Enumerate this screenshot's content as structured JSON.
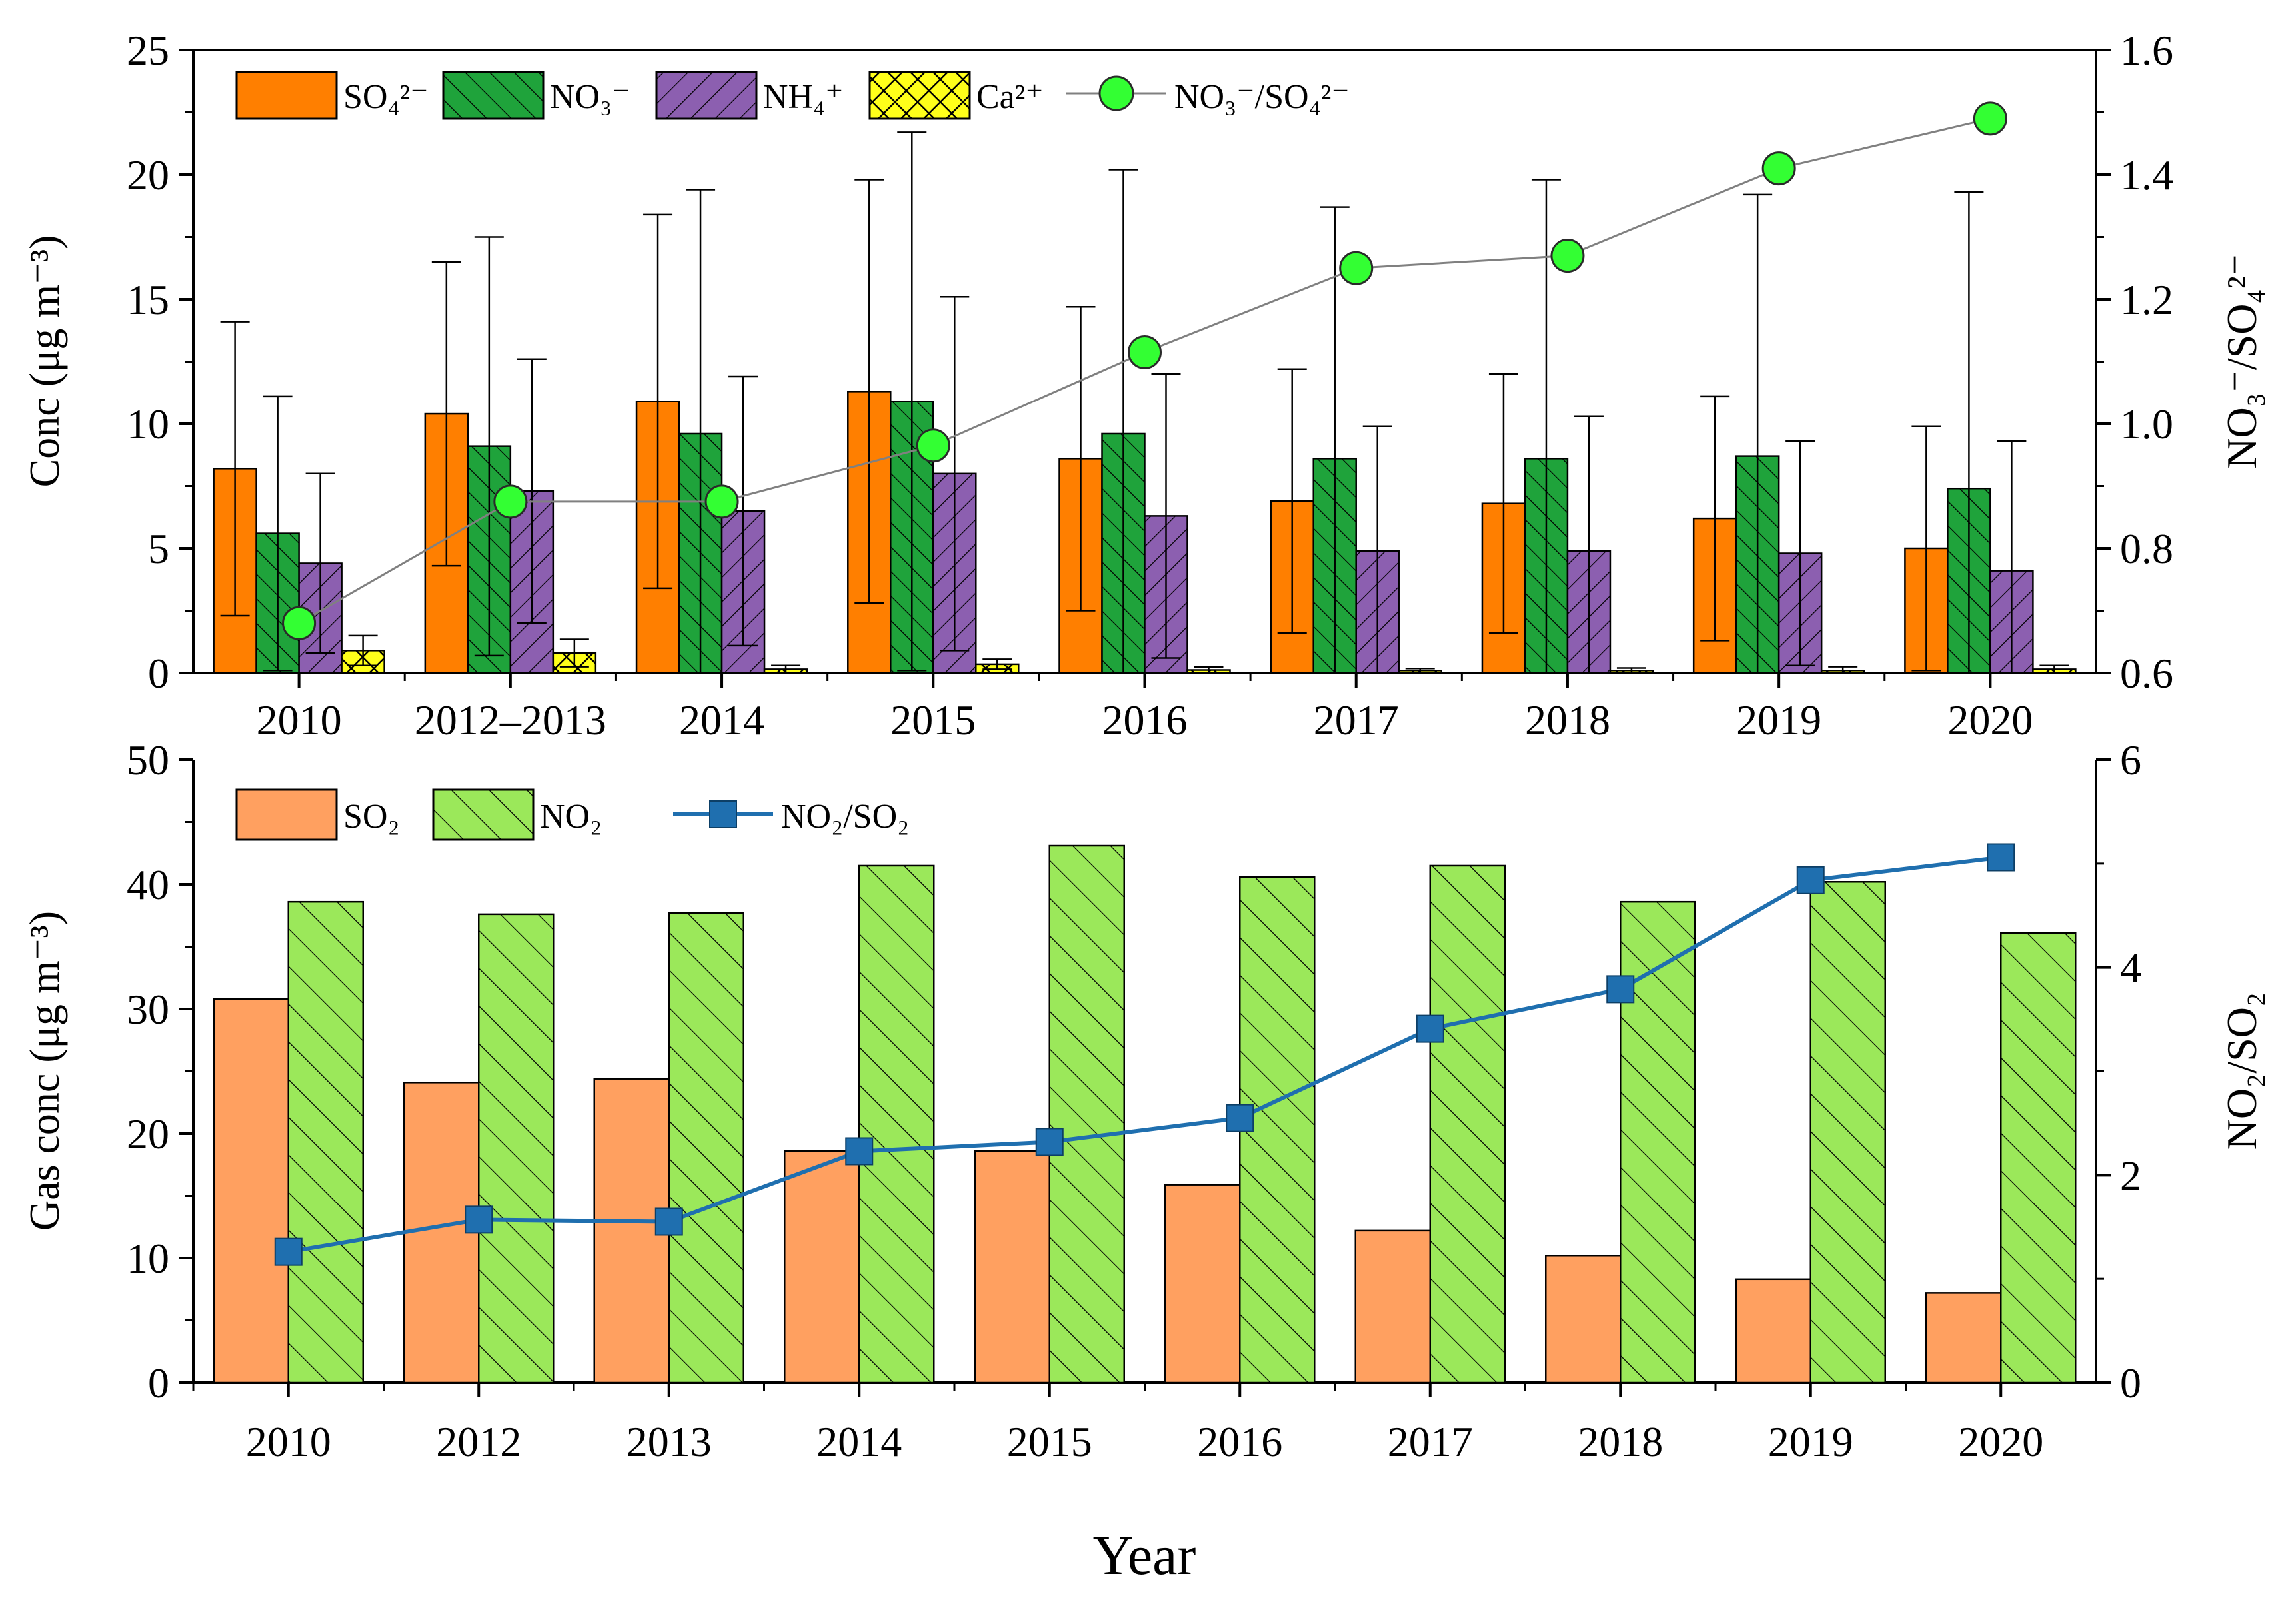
{
  "colors": {
    "so4": "#FF7F00",
    "no3": "#1FA33B",
    "nh4": "#8C5FB0",
    "ca": "#FFFF1A",
    "ratio_marker": "#33FF33",
    "ratio_line": "#808080",
    "so2": "#FFA060",
    "no2": "#9BE85A",
    "gas_ratio": "#1F6FAF"
  },
  "chart_data": [
    {
      "type": "bar",
      "id": "top",
      "ylabel": "Conc (μg m⁻³)",
      "y2label": "NO₃⁻/SO₄²⁻",
      "ylim": [
        0,
        25
      ],
      "y2lim": [
        0.6,
        1.6
      ],
      "yticks": [
        0,
        5,
        10,
        15,
        20,
        25
      ],
      "y2ticks": [
        "0.6",
        "0.8",
        "1.0",
        "1.2",
        "1.4",
        "1.6"
      ],
      "categories": [
        "2010",
        "2012–2013",
        "2014",
        "2015",
        "2016",
        "2017",
        "2018",
        "2019",
        "2020"
      ],
      "legend": [
        "SO₄²⁻",
        "NO₃⁻",
        "NH₄⁺",
        "Ca²⁺",
        "NO₃⁻/SO₄²⁻"
      ],
      "series": [
        {
          "name": "SO4",
          "values": [
            8.2,
            10.4,
            10.9,
            11.3,
            8.6,
            6.9,
            6.8,
            6.2,
            5.0
          ],
          "error": [
            5.9,
            6.1,
            7.5,
            8.5,
            6.1,
            5.3,
            5.2,
            4.9,
            4.9
          ]
        },
        {
          "name": "NO3",
          "values": [
            5.6,
            9.1,
            9.6,
            10.9,
            9.6,
            8.6,
            8.6,
            8.7,
            7.4
          ],
          "error": [
            5.5,
            8.4,
            9.8,
            10.8,
            10.6,
            10.1,
            11.2,
            10.5,
            11.9
          ]
        },
        {
          "name": "NH4",
          "values": [
            4.4,
            7.3,
            6.5,
            8.0,
            6.3,
            4.9,
            4.9,
            4.8,
            4.1
          ],
          "error": [
            3.6,
            5.3,
            5.4,
            7.1,
            5.7,
            5.0,
            5.4,
            4.5,
            5.2
          ]
        },
        {
          "name": "Ca",
          "values": [
            0.9,
            0.8,
            0.15,
            0.35,
            0.12,
            0.1,
            0.1,
            0.1,
            0.15
          ],
          "error": [
            0.6,
            0.55,
            0.15,
            0.2,
            0.12,
            0.08,
            0.1,
            0.15,
            0.15
          ]
        }
      ],
      "ratio": {
        "name": "NO3/SO4",
        "values": [
          0.68,
          0.875,
          0.875,
          0.965,
          1.115,
          1.25,
          1.27,
          1.41,
          1.49
        ]
      }
    },
    {
      "type": "bar",
      "id": "bottom",
      "ylabel": "Gas conc (μg m⁻³)",
      "y2label": "NO₂/SO₂",
      "xlabel": "Year",
      "ylim": [
        0,
        50
      ],
      "y2lim": [
        0,
        6
      ],
      "yticks": [
        0,
        10,
        20,
        30,
        40,
        50
      ],
      "y2ticks": [
        0,
        2,
        4,
        6
      ],
      "categories": [
        "2010",
        "2012",
        "2013",
        "2014",
        "2015",
        "2016",
        "2017",
        "2018",
        "2019",
        "2020"
      ],
      "legend": [
        "SO₂",
        "NO₂",
        "NO₂/SO₂"
      ],
      "series": [
        {
          "name": "SO2",
          "values": [
            30.8,
            24.1,
            24.4,
            18.6,
            18.6,
            15.9,
            12.2,
            10.2,
            8.3,
            7.2
          ]
        },
        {
          "name": "NO2",
          "values": [
            38.6,
            37.6,
            37.7,
            41.5,
            43.1,
            40.6,
            41.5,
            38.6,
            40.2,
            36.1
          ]
        }
      ],
      "ratio": {
        "name": "NO2/SO2",
        "values": [
          1.26,
          1.57,
          1.55,
          2.23,
          2.32,
          2.55,
          3.41,
          3.79,
          4.84,
          5.06
        ]
      }
    }
  ]
}
